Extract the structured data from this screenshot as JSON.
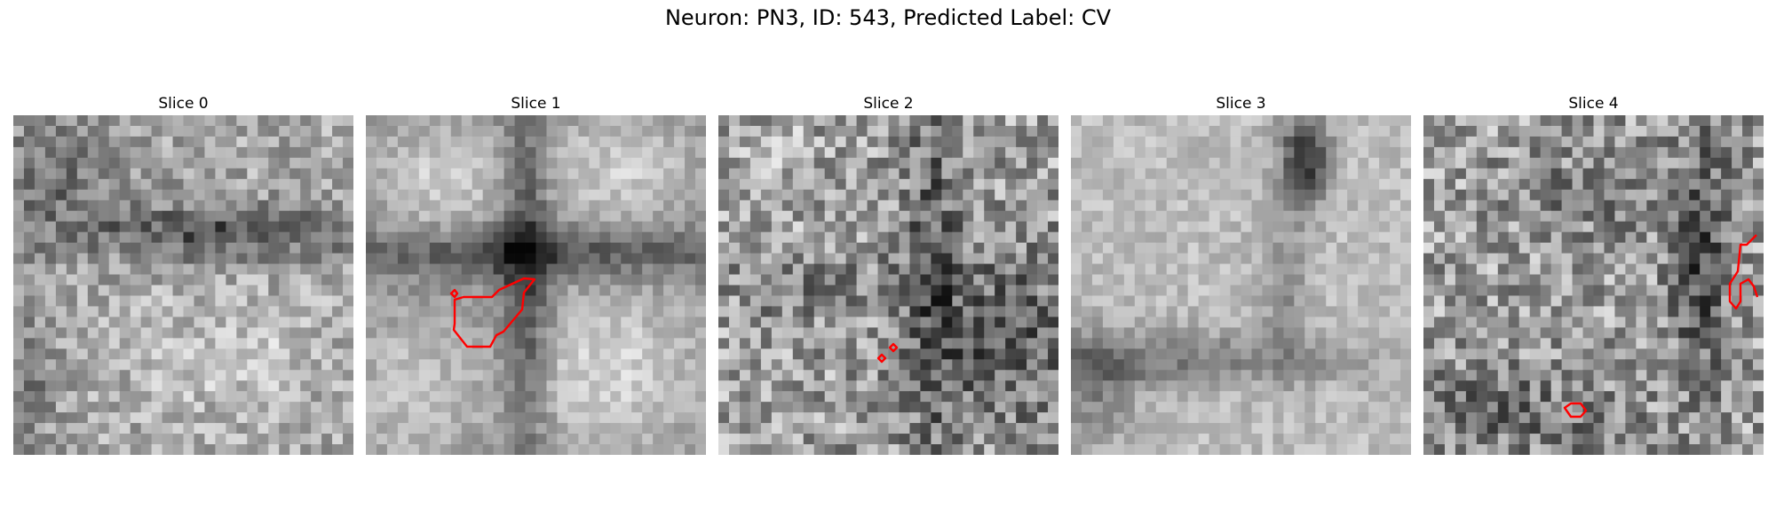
{
  "figure": {
    "title": "Neuron: PN3, ID: 543, Predicted Label: CV"
  },
  "panels": [
    {
      "title": "Slice 0"
    },
    {
      "title": "Slice 1"
    },
    {
      "title": "Slice 2"
    },
    {
      "title": "Slice 3"
    },
    {
      "title": "Slice 4"
    }
  ],
  "colors": {
    "contour": "#ff0000"
  }
}
